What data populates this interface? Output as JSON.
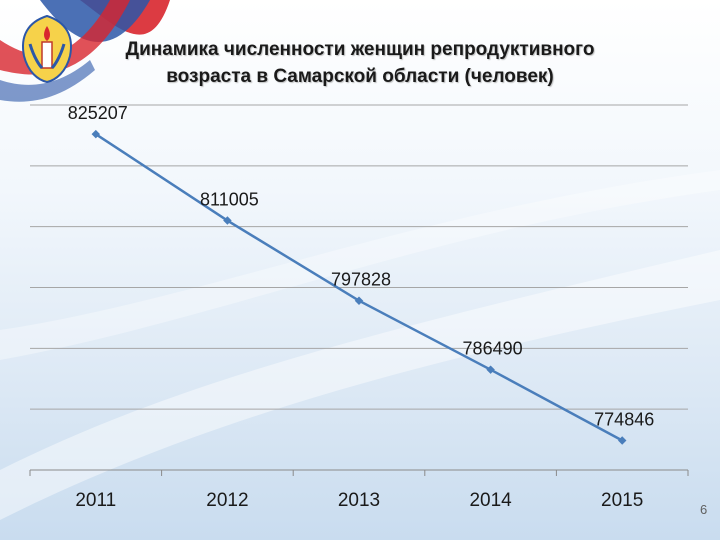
{
  "slide": {
    "title_line1": "Динамика численности женщин репродуктивного",
    "title_line2": "возраста в Самарской области (человек)",
    "page_number": "6",
    "logo_icon": "emblem-candle-icon"
  },
  "chart_data": {
    "type": "line",
    "title": "Динамика численности женщин репродуктивного возраста в Самарской области (человек)",
    "xlabel": "",
    "ylabel": "",
    "categories": [
      "2011",
      "2012",
      "2013",
      "2014",
      "2015"
    ],
    "series": [
      {
        "values": [
          825207,
          811005,
          797828,
          786490,
          774846
        ],
        "labels": [
          "825207",
          "811005",
          "797828",
          "786490",
          "774846"
        ],
        "color": "#4a7ebb"
      }
    ],
    "ylim": [
      770000,
      830000
    ],
    "grid": true,
    "legend": "none"
  }
}
